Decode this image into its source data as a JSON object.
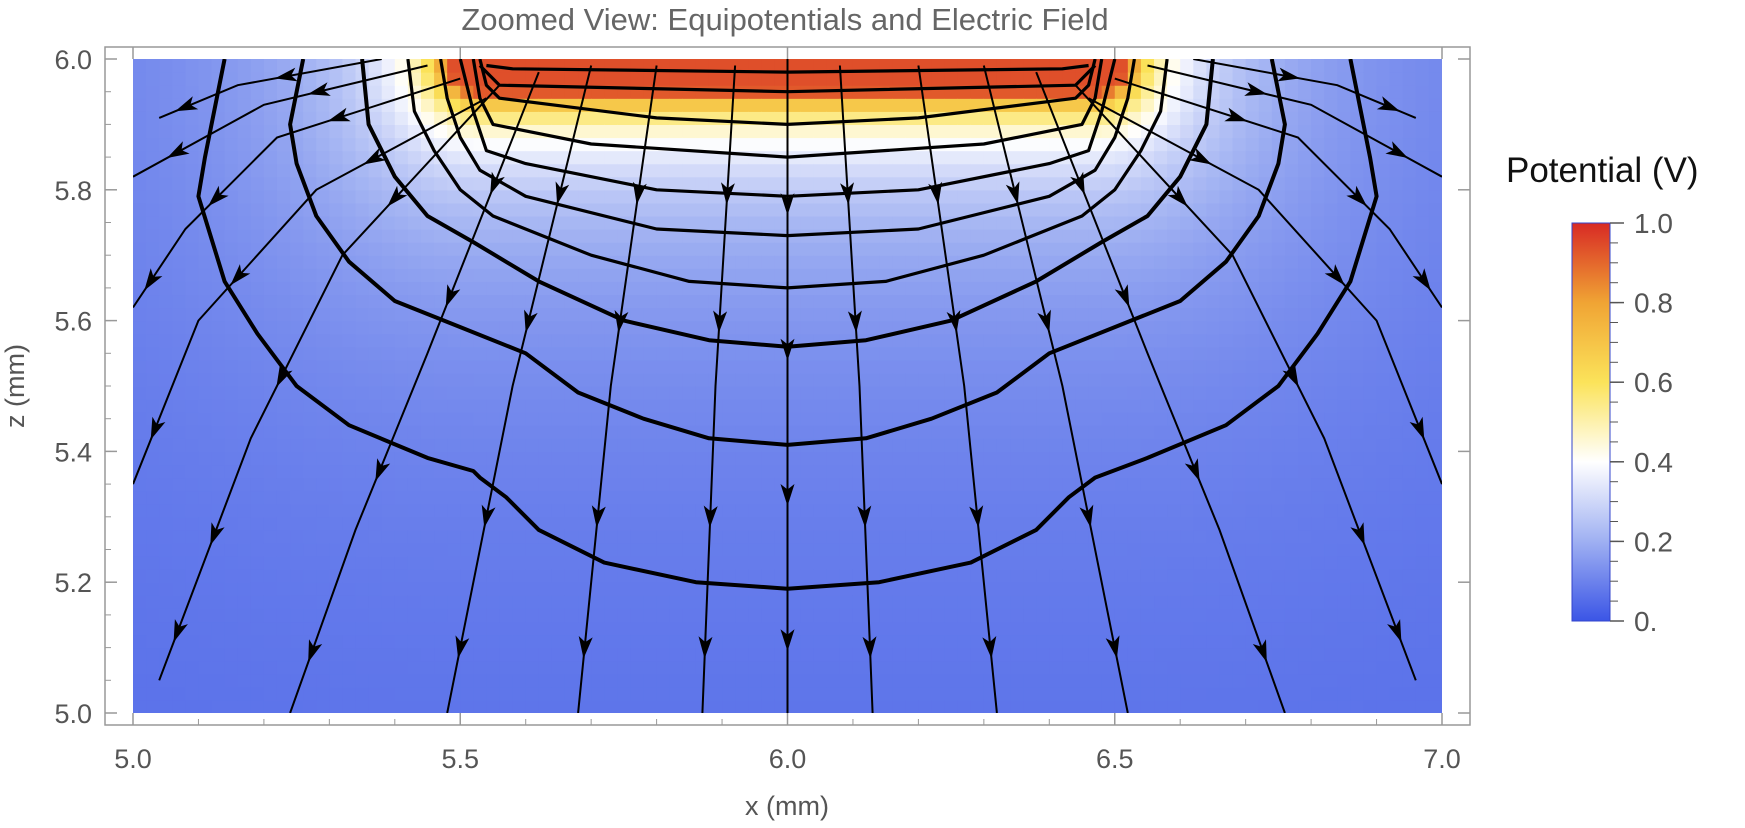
{
  "chart_data": {
    "type": "contour",
    "title": "Zoomed View: Equipotentials and Electric Field",
    "xlabel": "x (mm)",
    "ylabel": "z (mm)",
    "xlim": [
      5.0,
      7.0
    ],
    "ylim": [
      5.0,
      6.0
    ],
    "x_ticks": [
      "5.0",
      "5.5",
      "6.0",
      "6.5",
      "7.0"
    ],
    "x_tick_values": [
      5.0,
      5.5,
      6.0,
      6.5,
      7.0
    ],
    "y_ticks": [
      "5.0",
      "5.2",
      "5.4",
      "5.6",
      "5.8",
      "6.0"
    ],
    "y_tick_values": [
      5.0,
      5.2,
      5.4,
      5.6,
      5.8,
      6.0
    ],
    "colorbar": {
      "title": "Potential (V)",
      "range": [
        0,
        1
      ],
      "tick_labels": [
        "0.",
        "0.2",
        "0.4",
        "0.6",
        "0.8",
        "1.0"
      ],
      "tick_values": [
        0,
        0.2,
        0.4,
        0.6,
        0.8,
        1.0
      ],
      "colors": [
        "#3b55e6",
        "#9fb0f2",
        "#ffffff",
        "#fbe35a",
        "#f0a434",
        "#d82a25"
      ]
    },
    "equipotential_levels": [
      0.1,
      0.2,
      0.3,
      0.4,
      0.5,
      0.6,
      0.7,
      0.8,
      0.9,
      0.95
    ],
    "electrode": {
      "x_range": [
        5.53,
        6.47
      ],
      "z": 6.0,
      "potential": 1.0
    },
    "equipotential_contours": [
      [
        [
          5.14,
          6.0
        ],
        [
          5.11,
          5.85
        ],
        [
          5.1,
          5.79
        ],
        [
          5.14,
          5.66
        ],
        [
          5.19,
          5.58
        ],
        [
          5.25,
          5.5
        ],
        [
          5.33,
          5.44
        ],
        [
          5.45,
          5.39
        ],
        [
          5.52,
          5.37
        ],
        [
          5.53,
          5.36
        ],
        [
          5.57,
          5.33
        ],
        [
          5.62,
          5.28
        ],
        [
          5.72,
          5.23
        ],
        [
          5.86,
          5.2
        ],
        [
          6.0,
          5.19
        ],
        [
          6.14,
          5.2
        ],
        [
          6.28,
          5.23
        ],
        [
          6.38,
          5.28
        ],
        [
          6.43,
          5.33
        ],
        [
          6.47,
          5.36
        ],
        [
          6.55,
          5.39
        ],
        [
          6.67,
          5.44
        ],
        [
          6.75,
          5.5
        ],
        [
          6.81,
          5.58
        ],
        [
          6.86,
          5.66
        ],
        [
          6.9,
          5.79
        ],
        [
          6.89,
          5.85
        ],
        [
          6.86,
          6.0
        ]
      ],
      [
        [
          5.26,
          6.0
        ],
        [
          5.24,
          5.9
        ],
        [
          5.25,
          5.84
        ],
        [
          5.28,
          5.76
        ],
        [
          5.33,
          5.69
        ],
        [
          5.4,
          5.63
        ],
        [
          5.5,
          5.59
        ],
        [
          5.6,
          5.55
        ],
        [
          5.68,
          5.49
        ],
        [
          5.78,
          5.45
        ],
        [
          5.88,
          5.42
        ],
        [
          6.0,
          5.41
        ],
        [
          6.12,
          5.42
        ],
        [
          6.22,
          5.45
        ],
        [
          6.32,
          5.49
        ],
        [
          6.4,
          5.55
        ],
        [
          6.5,
          5.59
        ],
        [
          6.6,
          5.63
        ],
        [
          6.67,
          5.69
        ],
        [
          6.72,
          5.76
        ],
        [
          6.75,
          5.84
        ],
        [
          6.76,
          5.9
        ],
        [
          6.74,
          6.0
        ]
      ],
      [
        [
          5.35,
          6.0
        ],
        [
          5.36,
          5.9
        ],
        [
          5.4,
          5.82
        ],
        [
          5.45,
          5.76
        ],
        [
          5.52,
          5.72
        ],
        [
          5.62,
          5.66
        ],
        [
          5.75,
          5.6
        ],
        [
          5.88,
          5.57
        ],
        [
          6.0,
          5.56
        ],
        [
          6.12,
          5.57
        ],
        [
          6.25,
          5.6
        ],
        [
          6.38,
          5.66
        ],
        [
          6.48,
          5.72
        ],
        [
          6.55,
          5.76
        ],
        [
          6.6,
          5.82
        ],
        [
          6.64,
          5.9
        ],
        [
          6.65,
          6.0
        ]
      ],
      [
        [
          5.42,
          6.0
        ],
        [
          5.43,
          5.92
        ],
        [
          5.46,
          5.86
        ],
        [
          5.5,
          5.8
        ],
        [
          5.55,
          5.76
        ],
        [
          5.7,
          5.7
        ],
        [
          5.85,
          5.66
        ],
        [
          6.0,
          5.65
        ],
        [
          6.15,
          5.66
        ],
        [
          6.3,
          5.7
        ],
        [
          6.45,
          5.76
        ],
        [
          6.5,
          5.8
        ],
        [
          6.54,
          5.86
        ],
        [
          6.57,
          5.92
        ],
        [
          6.58,
          6.0
        ]
      ],
      [
        [
          5.47,
          6.0
        ],
        [
          5.48,
          5.94
        ],
        [
          5.5,
          5.88
        ],
        [
          5.53,
          5.83
        ],
        [
          5.6,
          5.79
        ],
        [
          5.8,
          5.74
        ],
        [
          6.0,
          5.73
        ],
        [
          6.2,
          5.74
        ],
        [
          6.4,
          5.79
        ],
        [
          6.47,
          5.83
        ],
        [
          6.5,
          5.88
        ],
        [
          6.52,
          5.94
        ],
        [
          6.53,
          6.0
        ]
      ],
      [
        [
          5.5,
          6.0
        ],
        [
          5.52,
          5.92
        ],
        [
          5.54,
          5.86
        ],
        [
          5.6,
          5.84
        ],
        [
          5.8,
          5.8
        ],
        [
          6.0,
          5.79
        ],
        [
          6.2,
          5.8
        ],
        [
          6.4,
          5.84
        ],
        [
          6.46,
          5.86
        ],
        [
          6.48,
          5.92
        ],
        [
          6.5,
          6.0
        ]
      ],
      [
        [
          5.52,
          6.0
        ],
        [
          5.53,
          5.94
        ],
        [
          5.55,
          5.9
        ],
        [
          5.7,
          5.87
        ],
        [
          6.0,
          5.85
        ],
        [
          6.3,
          5.87
        ],
        [
          6.45,
          5.9
        ],
        [
          6.47,
          5.94
        ],
        [
          6.48,
          6.0
        ]
      ],
      [
        [
          5.53,
          6.0
        ],
        [
          5.54,
          5.96
        ],
        [
          5.56,
          5.94
        ],
        [
          5.8,
          5.91
        ],
        [
          6.0,
          5.9
        ],
        [
          6.2,
          5.91
        ],
        [
          6.44,
          5.94
        ],
        [
          6.46,
          5.96
        ],
        [
          6.47,
          6.0
        ]
      ],
      [
        [
          5.53,
          5.99
        ],
        [
          5.56,
          5.96
        ],
        [
          6.0,
          5.95
        ],
        [
          6.44,
          5.96
        ],
        [
          6.47,
          5.99
        ]
      ],
      [
        [
          5.54,
          5.99
        ],
        [
          5.58,
          5.985
        ],
        [
          6.0,
          5.98
        ],
        [
          6.42,
          5.985
        ],
        [
          6.46,
          5.99
        ]
      ]
    ],
    "field_lines": [
      [
        [
          6.0,
          6.0
        ],
        [
          6.0,
          5.0
        ]
      ],
      [
        [
          5.92,
          5.99
        ],
        [
          5.89,
          5.5
        ],
        [
          5.87,
          5.0
        ]
      ],
      [
        [
          6.08,
          5.99
        ],
        [
          6.11,
          5.5
        ],
        [
          6.13,
          5.0
        ]
      ],
      [
        [
          5.8,
          5.99
        ],
        [
          5.73,
          5.5
        ],
        [
          5.68,
          5.0
        ]
      ],
      [
        [
          6.2,
          5.99
        ],
        [
          6.27,
          5.5
        ],
        [
          6.32,
          5.0
        ]
      ],
      [
        [
          5.7,
          5.99
        ],
        [
          5.58,
          5.5
        ],
        [
          5.48,
          5.0
        ]
      ],
      [
        [
          6.3,
          5.99
        ],
        [
          6.42,
          5.5
        ],
        [
          6.52,
          5.0
        ]
      ],
      [
        [
          5.62,
          5.98
        ],
        [
          5.45,
          5.55
        ],
        [
          5.34,
          5.28
        ],
        [
          5.24,
          5.0
        ]
      ],
      [
        [
          6.38,
          5.98
        ],
        [
          6.55,
          5.55
        ],
        [
          6.66,
          5.28
        ],
        [
          6.76,
          5.0
        ]
      ],
      [
        [
          5.56,
          5.96
        ],
        [
          5.32,
          5.7
        ],
        [
          5.18,
          5.42
        ],
        [
          5.04,
          5.05
        ]
      ],
      [
        [
          6.44,
          5.96
        ],
        [
          6.68,
          5.7
        ],
        [
          6.82,
          5.42
        ],
        [
          6.96,
          5.05
        ]
      ],
      [
        [
          5.54,
          5.94
        ],
        [
          5.28,
          5.8
        ],
        [
          5.1,
          5.6
        ],
        [
          5.0,
          5.35
        ]
      ],
      [
        [
          6.46,
          5.94
        ],
        [
          6.72,
          5.8
        ],
        [
          6.9,
          5.6
        ],
        [
          7.0,
          5.35
        ]
      ],
      [
        [
          5.5,
          5.97
        ],
        [
          5.22,
          5.88
        ],
        [
          5.08,
          5.74
        ],
        [
          5.0,
          5.62
        ]
      ],
      [
        [
          6.5,
          5.97
        ],
        [
          6.78,
          5.88
        ],
        [
          6.92,
          5.74
        ],
        [
          7.0,
          5.62
        ]
      ],
      [
        [
          5.45,
          5.99
        ],
        [
          5.2,
          5.93
        ],
        [
          5.0,
          5.82
        ]
      ],
      [
        [
          6.55,
          5.99
        ],
        [
          6.8,
          5.93
        ],
        [
          7.0,
          5.82
        ]
      ],
      [
        [
          5.38,
          6.0
        ],
        [
          5.16,
          5.96
        ],
        [
          5.04,
          5.91
        ]
      ],
      [
        [
          6.62,
          6.0
        ],
        [
          6.84,
          5.96
        ],
        [
          6.96,
          5.91
        ]
      ]
    ]
  }
}
